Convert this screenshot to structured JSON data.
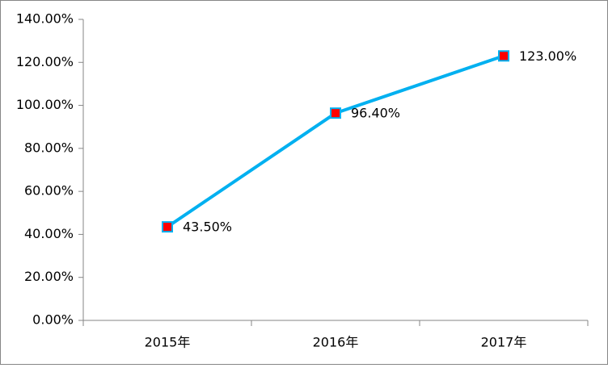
{
  "chart_data": {
    "type": "line",
    "categories": [
      "2015年",
      "2016年",
      "2017年"
    ],
    "values": [
      43.5,
      96.4,
      123
    ],
    "value_labels": [
      "43.50%",
      "96.40%",
      "123.00%"
    ],
    "color": "#00b0f0",
    "marker_color": "#ff0000",
    "ylim": [
      0,
      140
    ],
    "yticks": [
      {
        "value": 0,
        "label": "0.00%"
      },
      {
        "value": 20,
        "label": "20.00%"
      },
      {
        "value": 40,
        "label": "40.00%"
      },
      {
        "value": 60,
        "label": "60.00%"
      },
      {
        "value": 80,
        "label": "80.00%"
      },
      {
        "value": 100,
        "label": "100.00%"
      },
      {
        "value": 120,
        "label": "120.00%"
      },
      {
        "value": 140,
        "label": "140.00%"
      }
    ],
    "grid": false
  }
}
